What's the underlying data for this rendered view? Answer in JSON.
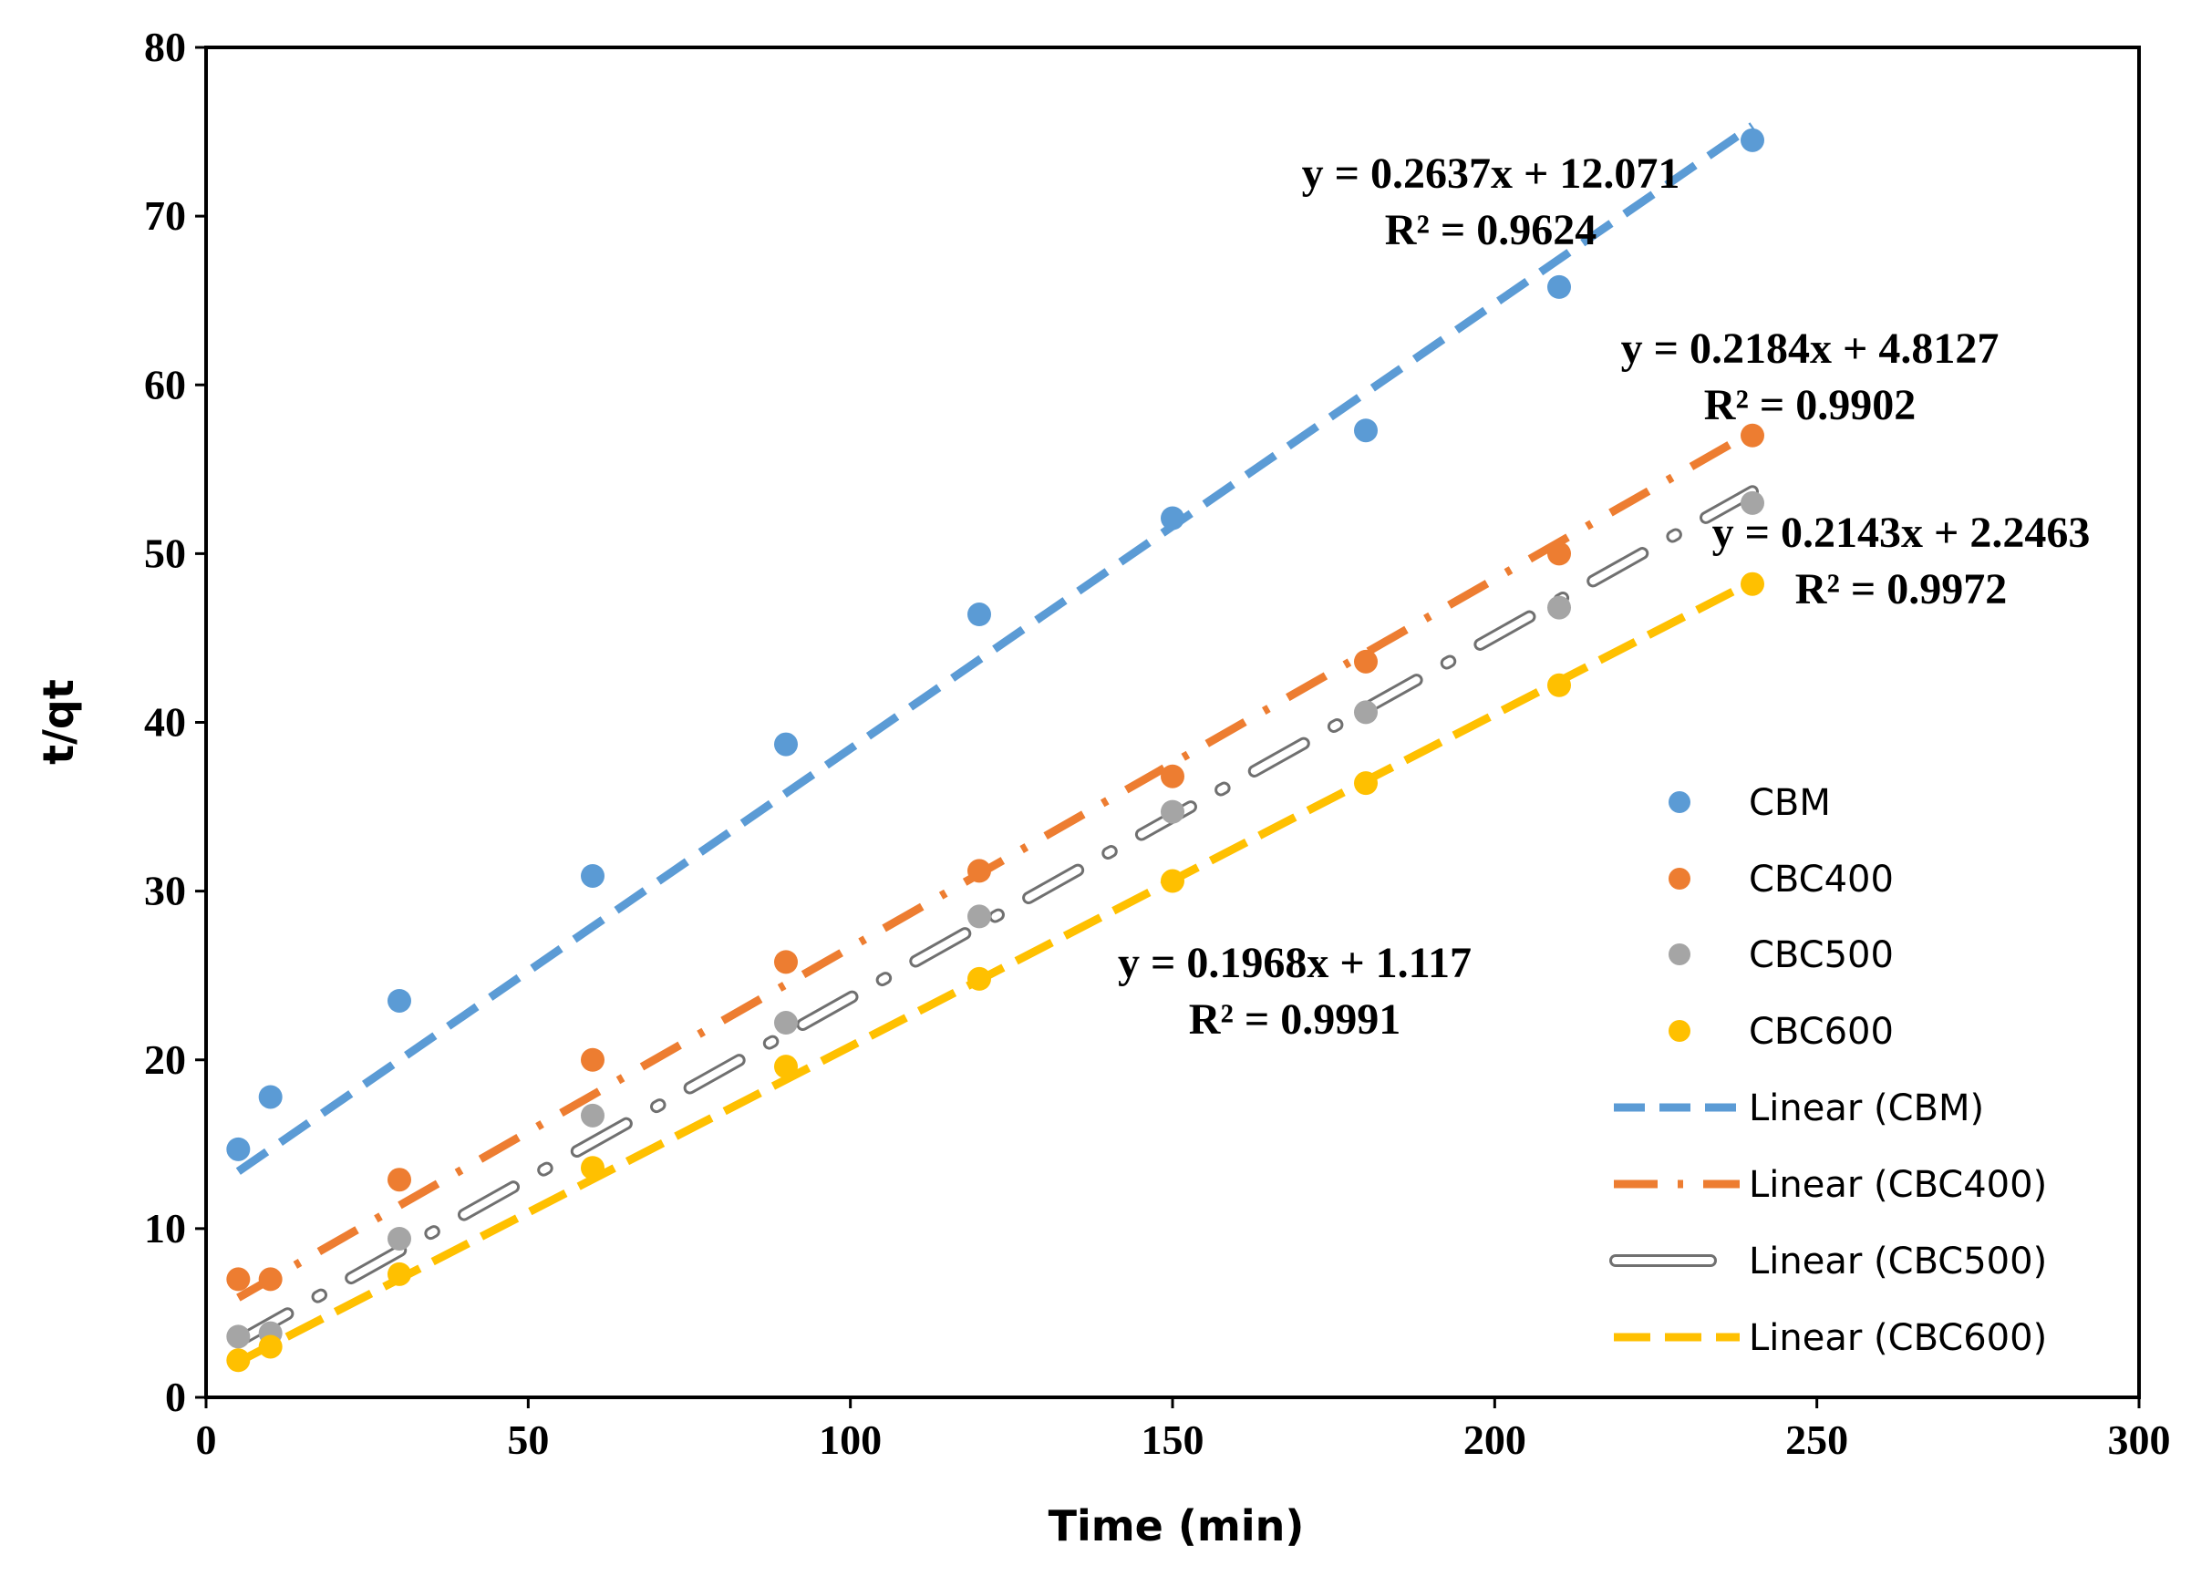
{
  "chart_data": {
    "type": "scatter",
    "title": "",
    "xlabel": "Time (min)",
    "ylabel": "t/qt",
    "xlim": [
      0,
      300
    ],
    "ylim": [
      0,
      80
    ],
    "x_ticks": [
      0,
      50,
      100,
      150,
      200,
      250,
      300
    ],
    "y_ticks": [
      0,
      10,
      20,
      30,
      40,
      50,
      60,
      70,
      80
    ],
    "grid": false,
    "legend_position": "right",
    "series": [
      {
        "name": "CBM",
        "color": "#5B9BD5",
        "x": [
          5,
          10,
          30,
          60,
          90,
          120,
          150,
          180,
          210,
          240
        ],
        "y": [
          14.7,
          17.8,
          23.5,
          30.9,
          38.7,
          46.4,
          52.1,
          57.3,
          65.8,
          74.5
        ]
      },
      {
        "name": "CBC400",
        "color": "#ED7D31",
        "x": [
          5,
          10,
          30,
          60,
          90,
          120,
          150,
          180,
          210,
          240
        ],
        "y": [
          7.0,
          7.0,
          12.9,
          20.0,
          25.8,
          31.2,
          36.8,
          43.6,
          50.0,
          57.0
        ]
      },
      {
        "name": "CBC500",
        "color": "#A5A5A5",
        "x": [
          5,
          10,
          30,
          60,
          90,
          120,
          150,
          180,
          210,
          240
        ],
        "y": [
          3.6,
          3.8,
          9.4,
          16.7,
          22.2,
          28.5,
          34.7,
          40.6,
          46.8,
          53.0
        ]
      },
      {
        "name": "CBC600",
        "color": "#FFC000",
        "x": [
          5,
          10,
          30,
          60,
          90,
          120,
          150,
          180,
          210,
          240
        ],
        "y": [
          2.2,
          3.0,
          7.3,
          13.6,
          19.6,
          24.8,
          30.6,
          36.4,
          42.2,
          48.2
        ]
      }
    ],
    "trendlines": [
      {
        "name": "Linear (CBM)",
        "series": "CBM",
        "slope": 0.2637,
        "intercept": 12.071,
        "x_range": [
          5,
          240
        ],
        "style": "dash",
        "color": "#5B9BD5"
      },
      {
        "name": "Linear (CBC400)",
        "series": "CBC400",
        "slope": 0.2184,
        "intercept": 4.8127,
        "x_range": [
          5,
          240
        ],
        "style": "dashdot",
        "color": "#ED7D31"
      },
      {
        "name": "Linear (CBC500)",
        "series": "CBC500",
        "slope": 0.2143,
        "intercept": 2.2463,
        "x_range": [
          5,
          240
        ],
        "style": "dashdot-hollow",
        "color": "#A5A5A5"
      },
      {
        "name": "Linear (CBC600)",
        "series": "CBC600",
        "slope": 0.1968,
        "intercept": 1.117,
        "x_range": [
          5,
          240
        ],
        "style": "dash",
        "color": "#FFC000"
      }
    ],
    "annotations": [
      {
        "series": "CBM",
        "equation": "y = 0.2637x + 12.071",
        "r2": "R² = 0.9624"
      },
      {
        "series": "CBC400",
        "equation": "y = 0.2184x + 4.8127",
        "r2": "R² = 0.9902"
      },
      {
        "series": "CBC500",
        "equation": "y = 0.2143x + 2.2463",
        "r2": "R² = 0.9972"
      },
      {
        "series": "CBC600",
        "equation": "y = 0.1968x + 1.117",
        "r2": "R² = 0.9991"
      }
    ],
    "legend": [
      "CBM",
      "CBC400",
      "CBC500",
      "CBC600",
      "Linear (CBM)",
      "Linear (CBC400)",
      "Linear (CBC500)",
      "Linear (CBC600)"
    ]
  }
}
